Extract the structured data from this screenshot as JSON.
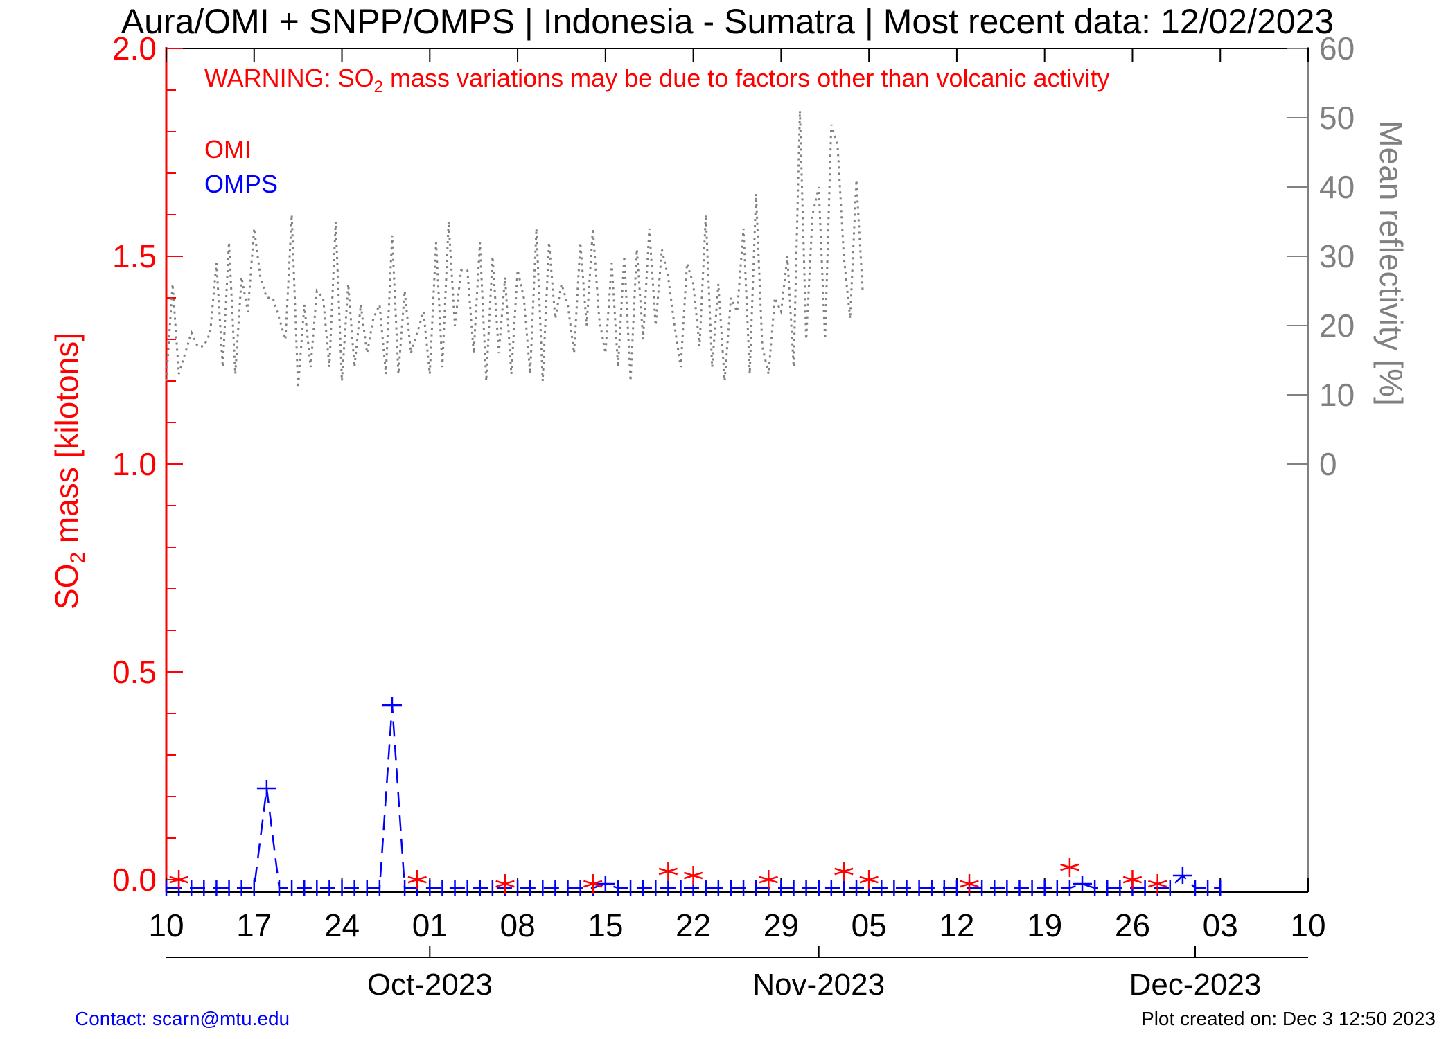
{
  "page": {
    "title": "Aura/OMI + SNPP/OMPS | Indonesia - Sumatra | Most recent data: 12/02/2023",
    "warning_prefix": "WARNING: SO",
    "warning_sub": "2",
    "warning_suffix": " mass variations may be due to factors other than volcanic activity",
    "contact": "Contact: scarn@mtu.edu",
    "created": "Plot created on: Dec  3 12:50 2023"
  },
  "colors": {
    "omi": "#ff0000",
    "omps": "#0000ff",
    "reflectivity": "#808080",
    "axis_right": "#808080"
  },
  "chart_data": {
    "type": "line",
    "x_start": "2023-09-10",
    "x_end": "2023-12-10",
    "x_tick_labels": [
      "10",
      "17",
      "24",
      "01",
      "08",
      "15",
      "22",
      "29",
      "05",
      "12",
      "19",
      "26",
      "03",
      "10"
    ],
    "month_labels": [
      {
        "label": "Oct-2023",
        "date": "2023-10-01"
      },
      {
        "label": "Nov-2023",
        "date": "2023-11-01"
      },
      {
        "label": "Dec-2023",
        "date": "2023-12-01"
      }
    ],
    "ylabel_prefix": "SO",
    "ylabel_sub": "2",
    "ylabel_suffix": " mass [kilotons]",
    "ylim": [
      -0.03,
      2.0
    ],
    "y_tick_labels": [
      "0.0",
      "0.5",
      "1.0",
      "1.5",
      "2.0"
    ],
    "y2label": "Mean reflectivity [%]",
    "y2lim": [
      0,
      60
    ],
    "y2_tick_labels": [
      "0",
      "10",
      "20",
      "30",
      "40",
      "50",
      "60"
    ],
    "legend": [
      "OMI",
      "OMPS"
    ],
    "series": [
      {
        "name": "OMI",
        "style": "asterisk-markers",
        "points": [
          {
            "x": "2023-09-11",
            "y": 0.0
          },
          {
            "x": "2023-09-30",
            "y": 0.0
          },
          {
            "x": "2023-10-07",
            "y": -0.01
          },
          {
            "x": "2023-10-14",
            "y": -0.01
          },
          {
            "x": "2023-10-20",
            "y": 0.02
          },
          {
            "x": "2023-10-22",
            "y": 0.01
          },
          {
            "x": "2023-10-28",
            "y": 0.0
          },
          {
            "x": "2023-11-03",
            "y": 0.02
          },
          {
            "x": "2023-11-05",
            "y": 0.0
          },
          {
            "x": "2023-11-13",
            "y": -0.01
          },
          {
            "x": "2023-11-21",
            "y": 0.03
          },
          {
            "x": "2023-11-26",
            "y": 0.0
          },
          {
            "x": "2023-11-28",
            "y": -0.01
          }
        ]
      },
      {
        "name": "OMPS",
        "style": "dashed-plus",
        "points": [
          {
            "x": "2023-09-10",
            "y": -0.02
          },
          {
            "x": "2023-09-11",
            "y": -0.02
          },
          {
            "x": "2023-09-12",
            "y": -0.02
          },
          {
            "x": "2023-09-13",
            "y": -0.02
          },
          {
            "x": "2023-09-14",
            "y": -0.02
          },
          {
            "x": "2023-09-15",
            "y": -0.02
          },
          {
            "x": "2023-09-16",
            "y": -0.02
          },
          {
            "x": "2023-09-17",
            "y": -0.02
          },
          {
            "x": "2023-09-18",
            "y": 0.22
          },
          {
            "x": "2023-09-19",
            "y": -0.02
          },
          {
            "x": "2023-09-20",
            "y": -0.02
          },
          {
            "x": "2023-09-21",
            "y": -0.02
          },
          {
            "x": "2023-09-22",
            "y": -0.02
          },
          {
            "x": "2023-09-23",
            "y": -0.02
          },
          {
            "x": "2023-09-24",
            "y": -0.02
          },
          {
            "x": "2023-09-25",
            "y": -0.02
          },
          {
            "x": "2023-09-26",
            "y": -0.02
          },
          {
            "x": "2023-09-27",
            "y": -0.02
          },
          {
            "x": "2023-09-28",
            "y": 0.42
          },
          {
            "x": "2023-09-29",
            "y": -0.02
          },
          {
            "x": "2023-09-30",
            "y": -0.02
          },
          {
            "x": "2023-10-01",
            "y": -0.02
          },
          {
            "x": "2023-10-02",
            "y": -0.02
          },
          {
            "x": "2023-10-03",
            "y": -0.02
          },
          {
            "x": "2023-10-04",
            "y": -0.02
          },
          {
            "x": "2023-10-05",
            "y": -0.02
          },
          {
            "x": "2023-10-06",
            "y": -0.02
          },
          {
            "x": "2023-10-07",
            "y": -0.02
          },
          {
            "x": "2023-10-08",
            "y": -0.02
          },
          {
            "x": "2023-10-09",
            "y": -0.02
          },
          {
            "x": "2023-10-10",
            "y": -0.02
          },
          {
            "x": "2023-10-11",
            "y": -0.02
          },
          {
            "x": "2023-10-12",
            "y": -0.02
          },
          {
            "x": "2023-10-13",
            "y": -0.02
          },
          {
            "x": "2023-10-14",
            "y": -0.02
          },
          {
            "x": "2023-10-15",
            "y": -0.01
          },
          {
            "x": "2023-10-16",
            "y": -0.02
          },
          {
            "x": "2023-10-17",
            "y": -0.02
          },
          {
            "x": "2023-10-18",
            "y": -0.02
          },
          {
            "x": "2023-10-19",
            "y": -0.02
          },
          {
            "x": "2023-10-20",
            "y": -0.02
          },
          {
            "x": "2023-10-21",
            "y": -0.02
          },
          {
            "x": "2023-10-22",
            "y": -0.02
          },
          {
            "x": "2023-10-23",
            "y": -0.02
          },
          {
            "x": "2023-10-24",
            "y": -0.02
          },
          {
            "x": "2023-10-25",
            "y": -0.02
          },
          {
            "x": "2023-10-26",
            "y": -0.02
          },
          {
            "x": "2023-10-27",
            "y": -0.02
          },
          {
            "x": "2023-10-28",
            "y": -0.02
          },
          {
            "x": "2023-10-29",
            "y": -0.02
          },
          {
            "x": "2023-10-30",
            "y": -0.02
          },
          {
            "x": "2023-10-31",
            "y": -0.02
          },
          {
            "x": "2023-11-01",
            "y": -0.02
          },
          {
            "x": "2023-11-02",
            "y": -0.02
          },
          {
            "x": "2023-11-03",
            "y": -0.02
          },
          {
            "x": "2023-11-04",
            "y": -0.02
          },
          {
            "x": "2023-11-05",
            "y": -0.02
          },
          {
            "x": "2023-11-06",
            "y": -0.02
          },
          {
            "x": "2023-11-07",
            "y": -0.02
          },
          {
            "x": "2023-11-08",
            "y": -0.02
          },
          {
            "x": "2023-11-09",
            "y": -0.02
          },
          {
            "x": "2023-11-10",
            "y": -0.02
          },
          {
            "x": "2023-11-11",
            "y": -0.02
          },
          {
            "x": "2023-11-12",
            "y": -0.02
          },
          {
            "x": "2023-11-13",
            "y": -0.02
          },
          {
            "x": "2023-11-14",
            "y": -0.02
          },
          {
            "x": "2023-11-15",
            "y": -0.02
          },
          {
            "x": "2023-11-16",
            "y": -0.02
          },
          {
            "x": "2023-11-17",
            "y": -0.02
          },
          {
            "x": "2023-11-18",
            "y": -0.02
          },
          {
            "x": "2023-11-19",
            "y": -0.02
          },
          {
            "x": "2023-11-20",
            "y": -0.02
          },
          {
            "x": "2023-11-21",
            "y": -0.02
          },
          {
            "x": "2023-11-22",
            "y": -0.01
          },
          {
            "x": "2023-11-23",
            "y": -0.02
          },
          {
            "x": "2023-11-24",
            "y": -0.02
          },
          {
            "x": "2023-11-25",
            "y": -0.02
          },
          {
            "x": "2023-11-26",
            "y": -0.02
          },
          {
            "x": "2023-11-27",
            "y": -0.02
          },
          {
            "x": "2023-11-28",
            "y": -0.02
          },
          {
            "x": "2023-11-29",
            "y": -0.02
          },
          {
            "x": "2023-11-30",
            "y": 0.01
          },
          {
            "x": "2023-12-01",
            "y": -0.02
          },
          {
            "x": "2023-12-02",
            "y": -0.02
          },
          {
            "x": "2023-12-03",
            "y": -0.02
          }
        ]
      },
      {
        "name": "Mean reflectivity",
        "axis": "right",
        "style": "dotted",
        "x_start": "2023-09-10",
        "x_step_days": 0.5,
        "values": [
          12,
          26,
          13,
          16,
          19,
          17,
          17,
          19,
          29,
          14,
          32,
          13,
          27,
          22,
          34,
          27,
          24,
          24,
          21,
          18,
          36,
          11,
          23,
          14,
          25,
          24,
          14,
          35,
          12,
          26,
          14,
          23,
          16,
          21,
          23,
          13,
          33,
          13,
          25,
          16,
          19,
          22,
          13,
          32,
          14,
          35,
          20,
          28,
          28,
          16,
          32,
          12,
          30,
          16,
          27,
          13,
          28,
          24,
          13,
          34,
          12,
          32,
          21,
          26,
          23,
          16,
          32,
          20,
          34,
          21,
          16,
          29,
          14,
          30,
          12,
          31,
          18,
          34,
          20,
          31,
          27,
          20,
          14,
          29,
          26,
          17,
          36,
          14,
          26,
          12,
          24,
          22,
          34,
          13,
          39,
          17,
          13,
          24,
          22,
          30,
          14,
          51,
          18,
          36,
          40,
          18,
          49,
          46,
          30,
          21,
          41,
          25
        ]
      }
    ]
  }
}
